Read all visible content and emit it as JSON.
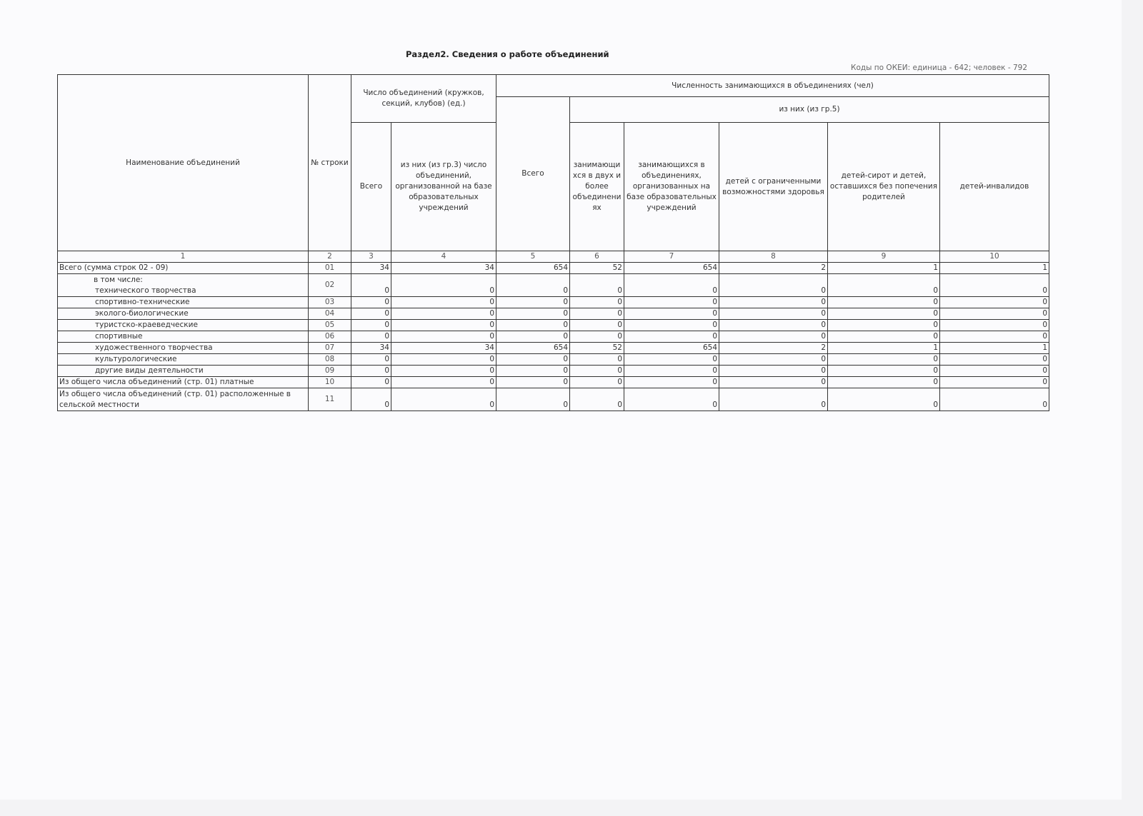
{
  "title": "Раздел2. Сведения о работе объединений",
  "codes": "Коды по ОКЕИ: единица - 642; человек - 792",
  "header": {
    "name": "Наименование объединений",
    "row_no": "№ строки",
    "group_count": "Число объединений (кружков, секций, клубов) (ед.)",
    "count_total": "Всего",
    "count_edu": "из них (из гр.3) число объединений, организованной на базе образовательных учреждений",
    "group_people": "Численность занимающихся в объединениях (чел)",
    "people_total": "Всего",
    "of_them": "из них (из гр.5)",
    "two_or_more": "занимающи хся в двух и более объединени ях",
    "in_edu": "занимающихся в объединениях, организованных на базе образовательных учреждений",
    "limited": "детей с ограниченными возможностями здоровья",
    "orphans": "детей-сирот и детей, оставшихся без попечения родителей",
    "disabled": "детей-инвалидов"
  },
  "column_numbers": [
    "1",
    "2",
    "3",
    "4",
    "5",
    "6",
    "7",
    "8",
    "9",
    "10"
  ],
  "rows": [
    {
      "name": "Всего (сумма строк 02 - 09)",
      "no": "01",
      "v": [
        "34",
        "34",
        "654",
        "52",
        "654",
        "2",
        "1",
        "1"
      ]
    },
    {
      "prefix": "в том числе:",
      "name": "технического творчества",
      "no": "02",
      "v": [
        "0",
        "0",
        "0",
        "0",
        "0",
        "0",
        "0",
        "0"
      ]
    },
    {
      "name": "спортивно-технические",
      "no": "03",
      "v": [
        "0",
        "0",
        "0",
        "0",
        "0",
        "0",
        "0",
        "0"
      ]
    },
    {
      "name": "эколого-биологические",
      "no": "04",
      "v": [
        "0",
        "0",
        "0",
        "0",
        "0",
        "0",
        "0",
        "0"
      ]
    },
    {
      "name": "туристско-краеведческие",
      "no": "05",
      "v": [
        "0",
        "0",
        "0",
        "0",
        "0",
        "0",
        "0",
        "0"
      ]
    },
    {
      "name": "спортивные",
      "no": "06",
      "v": [
        "0",
        "0",
        "0",
        "0",
        "0",
        "0",
        "0",
        "0"
      ]
    },
    {
      "name": "художественного творчества",
      "no": "07",
      "v": [
        "34",
        "34",
        "654",
        "52",
        "654",
        "2",
        "1",
        "1"
      ]
    },
    {
      "name": "культурологические",
      "no": "08",
      "v": [
        "0",
        "0",
        "0",
        "0",
        "0",
        "0",
        "0",
        "0"
      ]
    },
    {
      "name": "другие виды деятельности",
      "no": "09",
      "v": [
        "0",
        "0",
        "0",
        "0",
        "0",
        "0",
        "0",
        "0"
      ]
    },
    {
      "name": "Из общего числа объединений (стр. 01) платные",
      "no": "10",
      "v": [
        "0",
        "0",
        "0",
        "0",
        "0",
        "0",
        "0",
        "0"
      ]
    },
    {
      "name": "Из общего числа объединений (стр. 01) расположенные в сельской местности",
      "no": "11",
      "v": [
        "0",
        "0",
        "0",
        "0",
        "0",
        "0",
        "0",
        "0"
      ]
    }
  ]
}
